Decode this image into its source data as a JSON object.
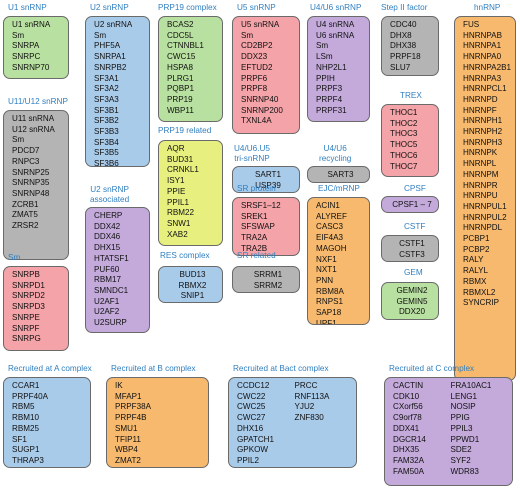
{
  "complexes": [
    {
      "key": "u1",
      "title": "U1 snRNP",
      "color": "green",
      "items": [
        "U1 snRNA",
        "Sm",
        "SNRPA",
        "SNRPC",
        "SNRNP70"
      ]
    },
    {
      "key": "u11u12",
      "title": "U11/U12 snRNP",
      "color": "gray",
      "items": [
        "U11 snRNA",
        "U12 snRNA",
        "Sm",
        "PDCD7",
        "RNPC3",
        "SNRNP25",
        "SNRNP35",
        "SNRNP48",
        "ZCRB1",
        "ZMAT5",
        "ZRSR2"
      ]
    },
    {
      "key": "sm",
      "title": "Sm",
      "color": "pink",
      "items": [
        "SNRPB",
        "SNRPD1",
        "SNRPD2",
        "SNRPD3",
        "SNRPE",
        "SNRPF",
        "SNRPG"
      ]
    },
    {
      "key": "u2",
      "title": "U2 snRNP",
      "color": "blue",
      "items": [
        "U2 snRNA",
        "Sm",
        "PHF5A",
        "SNRPA1",
        "SNRPB2",
        "SF3A1",
        "SF3A2",
        "SF3A3",
        "SF3B1",
        "SF3B2",
        "SF3B3",
        "SF3B4",
        "SF3B5",
        "SF3B6"
      ]
    },
    {
      "key": "u2assoc",
      "title_lines": [
        "U2 snRNP",
        "associated"
      ],
      "color": "purple",
      "items": [
        "CHERP",
        "DDX42",
        "DDX46",
        "DHX15",
        "HTATSF1",
        "PUF60",
        "RBM17",
        "SMNDC1",
        "U2AF1",
        "U2AF2",
        "U2SURP"
      ]
    },
    {
      "key": "prp19",
      "title": "PRP19 complex",
      "color": "green",
      "items": [
        "BCAS2",
        "CDC5L",
        "CTNNBL1",
        "CWC15",
        "HSPA8",
        "PLRG1",
        "PQBP1",
        "PRP19",
        "WBP11"
      ]
    },
    {
      "key": "prp19rel",
      "title": "PRP19 related",
      "color": "yellowg",
      "items": [
        "AQR",
        "BUD31",
        "CRNKL1",
        "ISY1",
        "PPIE",
        "PPIL1",
        "RBM22",
        "SNW1",
        "XAB2"
      ]
    },
    {
      "key": "res",
      "title": "RES complex",
      "color": "blue",
      "items": [
        "BUD13",
        "RBMX2",
        "SNIP1"
      ]
    },
    {
      "key": "u5",
      "title": "U5 snRNP",
      "color": "pink",
      "items": [
        "U5 snRNA",
        "Sm",
        "CD2BP2",
        "DDX23",
        "EFTUD2",
        "PRPF6",
        "PRPF8",
        "SNRNP40",
        "SNRNP200",
        "TXNL4A"
      ]
    },
    {
      "key": "u4u6u5",
      "title_lines": [
        "U4/U6.U5",
        "tri-snRNP"
      ],
      "color": "blue",
      "items": [
        "SART1",
        "USP39"
      ]
    },
    {
      "key": "srprotein",
      "title": "SR protein",
      "color": "pink",
      "items": [
        "SRSF1–12",
        "SREK1",
        "SFSWAP",
        "TRA2A",
        "TRA2B"
      ]
    },
    {
      "key": "srrel",
      "title": "SR related",
      "color": "gray",
      "items": [
        "SRRM1",
        "SRRM2"
      ]
    },
    {
      "key": "u4u6",
      "title": "U4/U6 snRNP",
      "color": "purple",
      "items": [
        "U4 snRNA",
        "U6 snRNA",
        "Sm",
        "LSm",
        "NHP2L1",
        "PPIH",
        "PRPF3",
        "PRPF4",
        "PRPF31"
      ]
    },
    {
      "key": "u4u6rec",
      "title_lines": [
        "U4/U6",
        "recycling"
      ],
      "color": "gray",
      "items": [
        "SART3"
      ]
    },
    {
      "key": "ejc",
      "title": "EJC/mRNP",
      "color": "orange",
      "items": [
        "ACIN1",
        "ALYREF",
        "CASC3",
        "EIF4A3",
        "MAGOH",
        "NXF1",
        "NXT1",
        "PNN",
        "RBM8A",
        "RNPS1",
        "SAP18",
        "UPF1"
      ]
    },
    {
      "key": "step2",
      "title": "Step II factor",
      "color": "gray",
      "items": [
        "CDC40",
        "DHX8",
        "DHX38",
        "PRPF18",
        "SLU7"
      ]
    },
    {
      "key": "trex",
      "title": "TREX",
      "color": "pink",
      "items": [
        "THOC1",
        "THOC2",
        "THOC3",
        "THOC5",
        "THOC6",
        "THOC7"
      ]
    },
    {
      "key": "cpsf",
      "title": "CPSF",
      "color": "purple",
      "items": [
        "CPSF1 – 7"
      ]
    },
    {
      "key": "cstf",
      "title": "CSTF",
      "color": "gray",
      "items": [
        "CSTF1",
        "CSTF3"
      ]
    },
    {
      "key": "gem",
      "title": "GEM",
      "color": "green",
      "items": [
        "GEMIN2",
        "GEMIN5",
        "DDX20"
      ]
    },
    {
      "key": "hnrnp",
      "title": "hnRNP",
      "color": "orange",
      "items": [
        "FUS",
        "HNRNPAB",
        "HNRNPA1",
        "HNRNPA0",
        "HNRNPA2B1",
        "HNRNPA3",
        "HNRNPCL1",
        "HNRNPD",
        "HNRNPF",
        "HNRNPH1",
        "HNRNPH2",
        "HNRNPH3",
        "HNRNPK",
        "HNRNPL",
        "HNRNPM",
        "HNRNPR",
        "HNRNPU",
        "HNRNPUL1",
        "HNRNPUL2",
        "HNRNPDL",
        "PCBP1",
        "PCBP2",
        "RALY",
        "RALYL",
        "RBMX",
        "RBMXL2",
        "SYNCRIP"
      ]
    },
    {
      "key": "recA",
      "title": "Recruited at A complex",
      "color": "blue",
      "items": [
        "CCAR1",
        "PRPF40A",
        "RBM5",
        "RBM10",
        "RBM25",
        "SF1",
        "SUGP1",
        "THRAP3"
      ]
    },
    {
      "key": "recB",
      "title": "Recruited at B complex",
      "color": "orange",
      "items": [
        "IK",
        "MFAP1",
        "PRPF38A",
        "PRPF4B",
        "SMU1",
        "TFIP11",
        "WBP4",
        "ZMAT2"
      ]
    },
    {
      "key": "recBact",
      "title": "Recruited at Bact complex",
      "color": "blue",
      "items": [
        "CCDC12",
        "CWC22",
        "CWC25",
        "CWC27",
        "DHX16",
        "GPATCH1",
        "GPKOW",
        "PPIL2",
        "PRCC",
        "RNF113A",
        "YJU2",
        "ZNF830"
      ]
    },
    {
      "key": "recC",
      "title": "Recruited at C complex",
      "color": "purple",
      "items": [
        "CACTIN",
        "CDK10",
        "CXorf56",
        "C9orf78",
        "DDX41",
        "DGCR14",
        "DHX35",
        "FAM32A",
        "FAM50A",
        "FRA10AC1",
        "LENG1",
        "NOSIP",
        "PPIG",
        "PPIL3",
        "PPWD1",
        "SDE2",
        "SYF2",
        "WDR83"
      ]
    }
  ]
}
